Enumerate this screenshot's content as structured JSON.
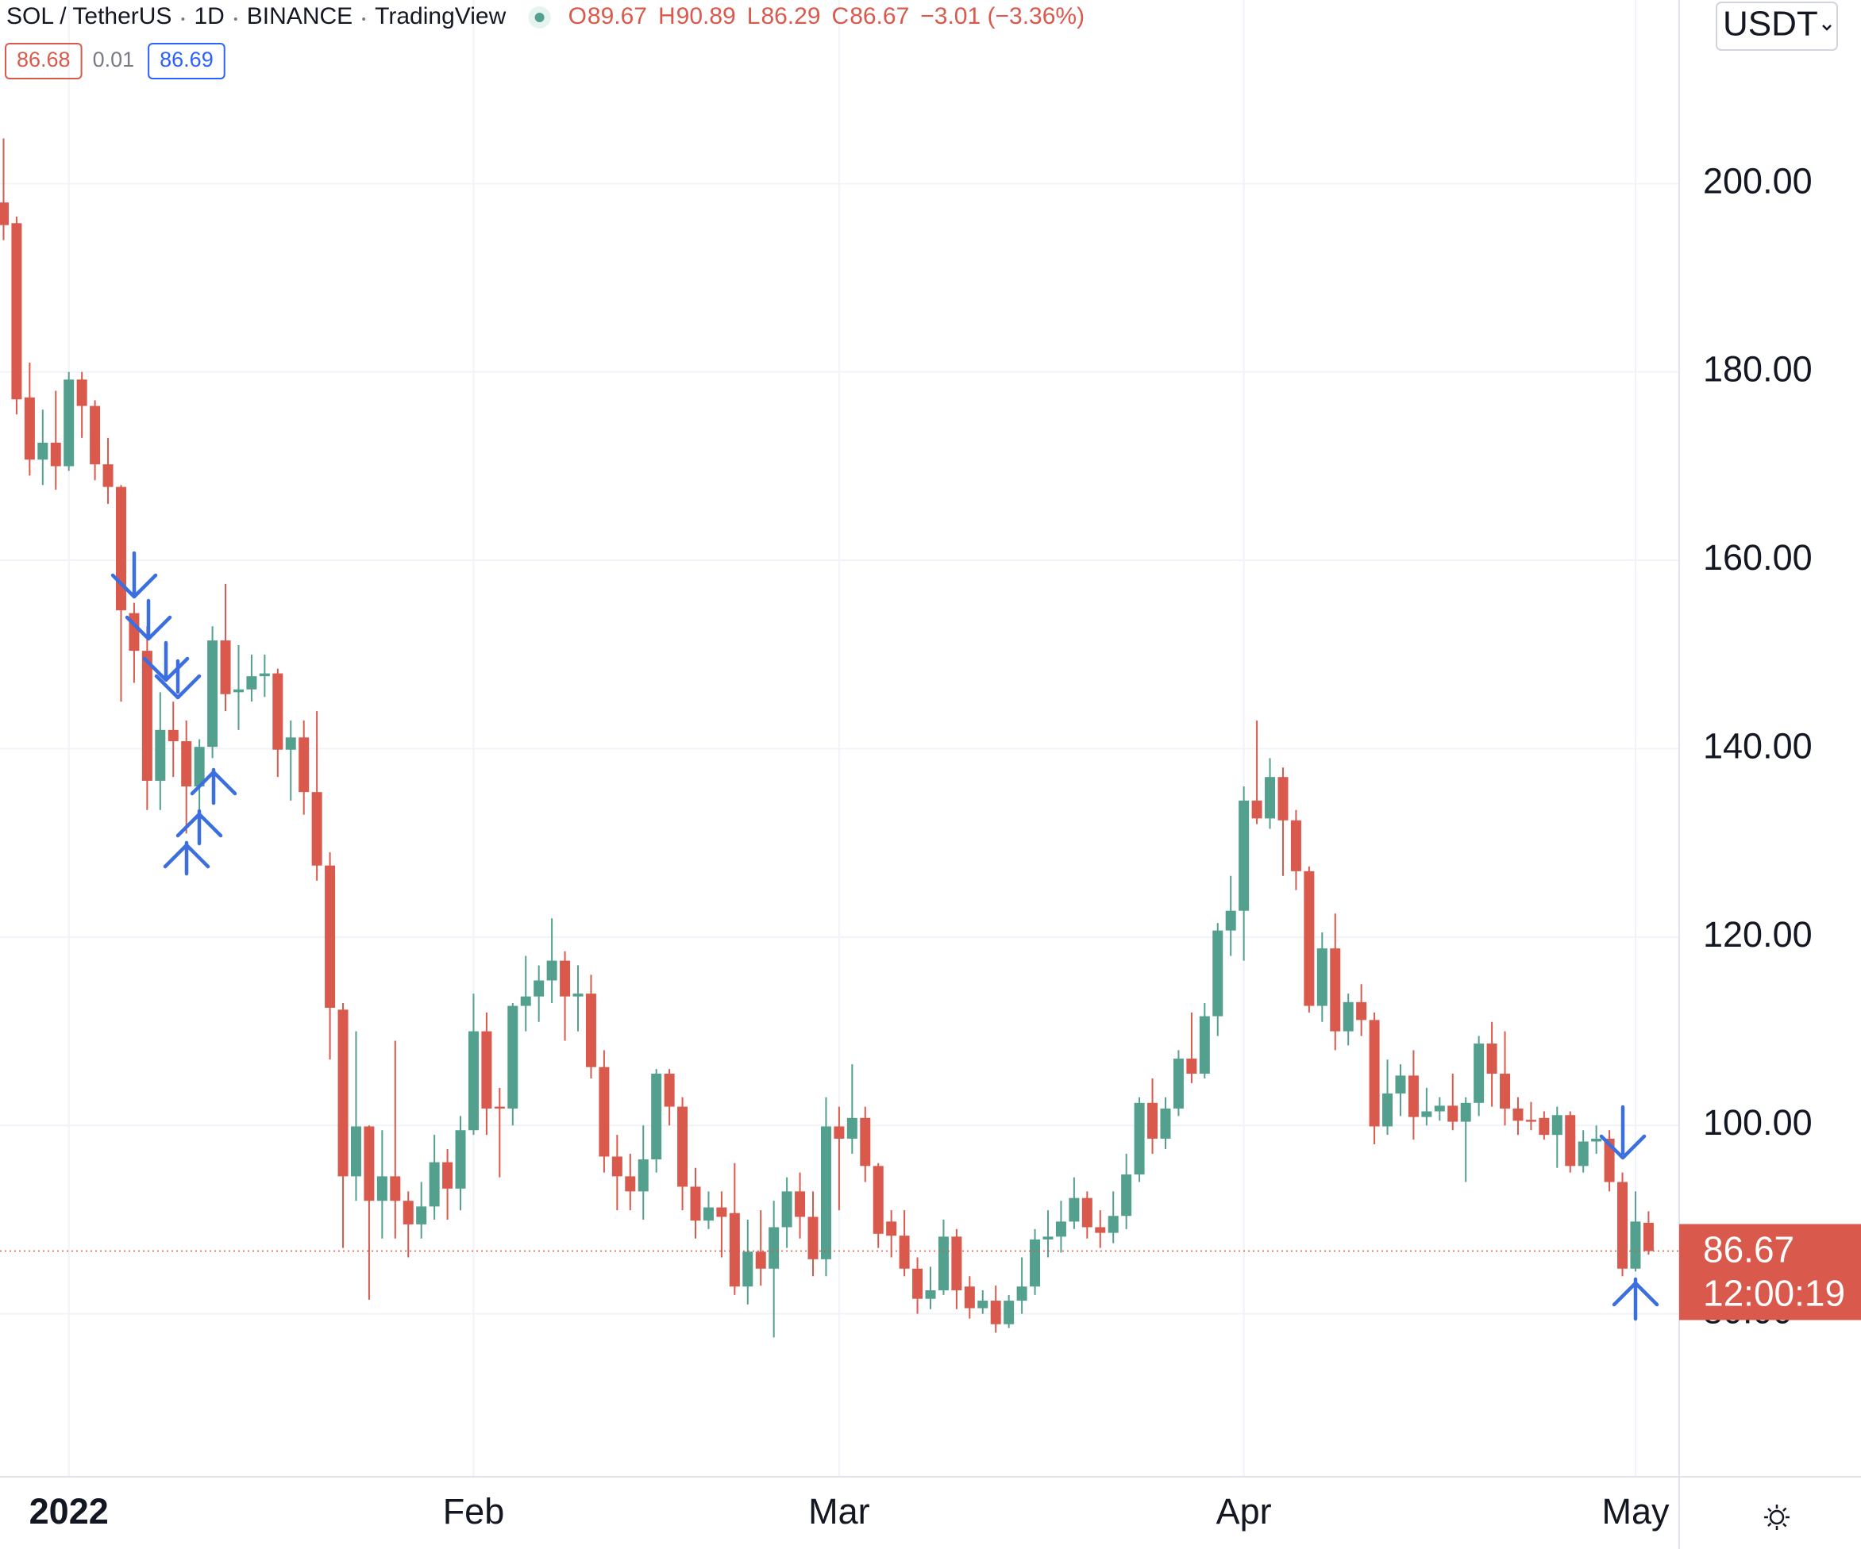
{
  "chart_data": {
    "type": "candlestick",
    "title": "SOL / TetherUS",
    "interval": "1D",
    "exchange": "BINANCE",
    "source": "TradingView",
    "ohlc_letters": [
      "O",
      "H",
      "L",
      "C"
    ],
    "change": "−3.01 (−3.36%)",
    "bid": 86.68,
    "spread": 0.01,
    "ask": 86.69,
    "currency": "USDT",
    "countdown": "12:00:19",
    "up_color": "#53a08f",
    "down_color": "#d9594c",
    "grid": true,
    "categories": [
      null,
      null,
      null,
      null,
      null,
      "2022",
      null,
      null,
      null,
      null,
      null,
      null,
      null,
      null,
      null,
      null,
      null,
      null,
      null,
      null,
      null,
      null,
      null,
      null,
      null,
      null,
      null,
      null,
      null,
      null,
      null,
      null,
      null,
      null,
      null,
      null,
      "Feb",
      null,
      null,
      null,
      null,
      null,
      null,
      null,
      null,
      null,
      null,
      null,
      null,
      null,
      null,
      null,
      null,
      null,
      null,
      null,
      null,
      null,
      null,
      null,
      null,
      null,
      null,
      null,
      "Mar",
      null,
      null,
      null,
      null,
      null,
      null,
      null,
      null,
      null,
      null,
      null,
      null,
      null,
      null,
      null,
      null,
      null,
      null,
      null,
      null,
      null,
      null,
      null,
      null,
      null,
      null,
      null,
      null,
      null,
      null,
      "Apr",
      null,
      null,
      null,
      null,
      null,
      null,
      null,
      null,
      null,
      null,
      null,
      null,
      null,
      null,
      null,
      null,
      null,
      null,
      null,
      null,
      null,
      null,
      null,
      null,
      null,
      null,
      null,
      null,
      null,
      "May",
      null
    ],
    "open": [
      198,
      195.8,
      177.3,
      170.7,
      172.5,
      170,
      179.2,
      176.4,
      170.2,
      167.8,
      154.4,
      150.4,
      136.6,
      142,
      140.8,
      136,
      140.2,
      151.5,
      146,
      146.3,
      147.7,
      148,
      139.9,
      141.2,
      135.4,
      127.6,
      112.3,
      94.6,
      99.9,
      92,
      94.6,
      92,
      89.5,
      91.4,
      96.1,
      93.3,
      99.5,
      110,
      102,
      101.8,
      112.7,
      113.7,
      115.4,
      117.5,
      113.7,
      114,
      106.2,
      96.7,
      94.6,
      93,
      96.4,
      105.5,
      102,
      93.5,
      89.9,
      91.3,
      90.7,
      82.9,
      86.6,
      84.8,
      89.2,
      93,
      90.3,
      85.8,
      99.9,
      98.6,
      100.8,
      95.7,
      89.8,
      88.3,
      84.8,
      81.6,
      82.5,
      88.2,
      82.9,
      80.6,
      81.4,
      78.9,
      81.4,
      82.9,
      87.9,
      88.2,
      89.8,
      92.3,
      89.2,
      88.6,
      90.4,
      94.8,
      102.4,
      98.6,
      101.8,
      107.1,
      105.5,
      111.6,
      120.7,
      122.8,
      134.5,
      132.6,
      137,
      132.4,
      127,
      112.7,
      118.8,
      110,
      113.1,
      111.2,
      99.9,
      103.4,
      105.3,
      100.9,
      101.5,
      102.1,
      100.4,
      102.4,
      108.7,
      105.5,
      101.8,
      100.6,
      100.8,
      99,
      101.1,
      95.7,
      98.3,
      98.6,
      94,
      84.8,
      89.67
    ],
    "high": [
      204.8,
      196.5,
      181,
      176,
      178,
      180,
      180,
      177,
      173,
      168,
      155.5,
      153,
      146,
      145,
      143,
      141,
      153,
      157.5,
      151,
      150,
      150,
      148.5,
      143,
      143,
      144,
      129,
      113,
      110,
      100,
      99.5,
      109,
      93,
      94,
      99,
      97.5,
      101,
      114,
      112,
      104,
      113,
      118,
      117,
      122,
      118.5,
      117,
      116,
      108,
      99,
      97,
      100,
      106,
      106,
      103,
      95.5,
      93,
      93,
      96,
      90,
      91,
      92,
      94.5,
      95,
      93,
      103,
      102,
      106.5,
      102,
      96,
      91,
      91,
      86,
      85,
      90,
      89,
      84,
      82.5,
      83,
      82,
      86,
      89,
      91,
      92,
      94.5,
      93,
      91,
      93,
      97,
      103,
      105,
      103,
      108,
      112,
      113,
      121.5,
      126.5,
      136,
      143,
      139,
      138,
      133.5,
      127.5,
      120.5,
      122.5,
      114,
      115,
      112,
      107,
      106.5,
      108,
      104,
      103,
      105.5,
      103,
      109.5,
      111,
      110,
      103,
      102.5,
      101.5,
      102,
      101.5,
      99.5,
      100,
      99.5,
      95,
      93,
      90.89
    ],
    "low": [
      194,
      175.5,
      169,
      168,
      167.5,
      169.5,
      173,
      168.5,
      166,
      145,
      147,
      133.5,
      133.5,
      137,
      131,
      133,
      139,
      144,
      142,
      145,
      145.5,
      137,
      134.5,
      133,
      126,
      107,
      87,
      92,
      81.5,
      88,
      88,
      86,
      88,
      90,
      90,
      91,
      99,
      99,
      94.5,
      100,
      110,
      111,
      113,
      109,
      110,
      105,
      95,
      91,
      91,
      90,
      95,
      100,
      91,
      88,
      89,
      86,
      82,
      81,
      83,
      77.5,
      87,
      88,
      84,
      84,
      91,
      97,
      94,
      87,
      86,
      84,
      80,
      80.5,
      82,
      80.5,
      79.5,
      80,
      78,
      78.5,
      80,
      82,
      86,
      86.5,
      89,
      88,
      87,
      87.5,
      89,
      94,
      97,
      97.5,
      101,
      104.5,
      105,
      109.5,
      118,
      117.5,
      132,
      131.5,
      126.5,
      125,
      112,
      111,
      108,
      108.5,
      109.5,
      98,
      99,
      101,
      98.5,
      100,
      100.5,
      99.5,
      94,
      101,
      102,
      100,
      99,
      99.5,
      98.5,
      95.5,
      95,
      95,
      97,
      93,
      84,
      84.5,
      86.29
    ],
    "close": [
      195.6,
      177.1,
      170.7,
      172.5,
      170,
      179.2,
      176.4,
      170.2,
      167.8,
      154.7,
      150.4,
      136.6,
      142,
      140.8,
      136,
      140.2,
      151.5,
      145.8,
      146.3,
      147.7,
      148,
      139.9,
      141.2,
      135.4,
      127.6,
      112.5,
      94.6,
      99.9,
      92,
      94.6,
      92,
      89.5,
      91.4,
      96.1,
      93.3,
      99.5,
      110,
      101.8,
      101.8,
      112.7,
      113.7,
      115.4,
      117.5,
      113.7,
      114,
      106.2,
      96.7,
      94.6,
      93,
      96.4,
      105.5,
      102,
      93.5,
      89.9,
      91.3,
      90.3,
      82.9,
      86.6,
      84.8,
      89.2,
      93,
      90.3,
      85.8,
      99.9,
      98.6,
      100.8,
      95.7,
      88.5,
      88.3,
      84.8,
      81.6,
      82.5,
      88.2,
      82.5,
      80.6,
      81.4,
      78.9,
      81.4,
      82.9,
      87.9,
      88.2,
      89.8,
      92.3,
      89.2,
      88.6,
      90.4,
      94.8,
      102.4,
      98.6,
      101.8,
      107.1,
      105.5,
      111.6,
      120.7,
      122.8,
      134.5,
      132.6,
      137,
      132.4,
      127,
      112.7,
      118.8,
      110,
      113.1,
      111.2,
      99.9,
      103.4,
      105.3,
      100.9,
      101.5,
      102.1,
      100.4,
      102.4,
      108.7,
      105.5,
      101.8,
      100.5,
      100.4,
      99,
      101.1,
      95.7,
      98.3,
      98.6,
      94,
      84.8,
      89.8,
      86.67
    ],
    "ylim": [
      62.7,
      219.5
    ],
    "yticks": [
      {
        "value": 80,
        "label": "80.00"
      },
      {
        "value": 100,
        "label": "100.00"
      },
      {
        "value": 120,
        "label": "120.00"
      },
      {
        "value": 140,
        "label": "140.00"
      },
      {
        "value": 160,
        "label": "160.00"
      },
      {
        "value": 180,
        "label": "180.00"
      },
      {
        "value": 200,
        "label": "200.00"
      }
    ]
  }
}
